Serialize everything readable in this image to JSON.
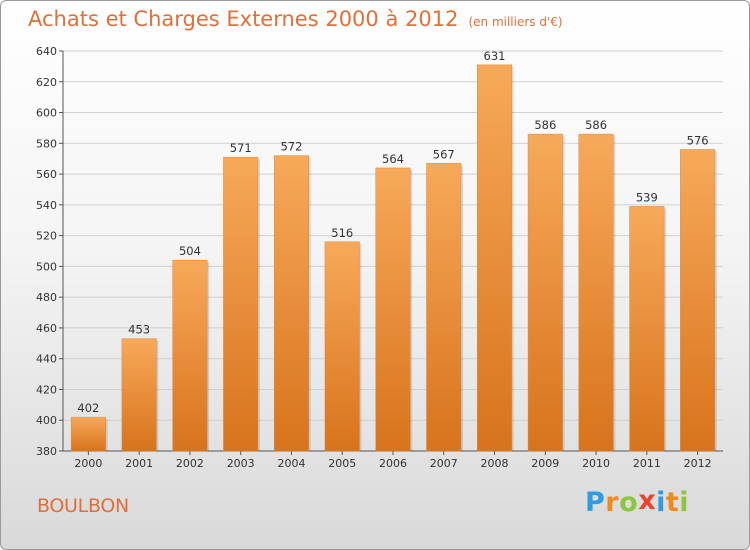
{
  "header": {
    "title": "Achats et Charges Externes 2000 à 2012",
    "unit": "(en milliers d'€)"
  },
  "footer": {
    "commune": "BOULBON",
    "logo_text": "Proxiti",
    "logo_letters": [
      {
        "ch": "P",
        "color": "#2f9be0"
      },
      {
        "ch": "r",
        "color": "#f08a1c"
      },
      {
        "ch": "o",
        "color": "#8cc63e"
      },
      {
        "ch": "x",
        "color": "#e8452e"
      },
      {
        "ch": "i",
        "color": "#2f9be0"
      },
      {
        "ch": "t",
        "color": "#f08a1c"
      },
      {
        "ch": "i",
        "color": "#8cc63e"
      }
    ]
  },
  "colors": {
    "bar_top": "#f7a95a",
    "bar_bottom": "#d8731c",
    "title": "#e0703a",
    "grid": "#d0d0d0"
  },
  "chart_data": {
    "type": "bar",
    "title": "Achats et Charges Externes 2000 à 2012",
    "subtitle": "(en milliers d'€)",
    "categories": [
      "2000",
      "2001",
      "2002",
      "2003",
      "2004",
      "2005",
      "2006",
      "2007",
      "2008",
      "2009",
      "2010",
      "2011",
      "2012"
    ],
    "values": [
      402,
      453,
      504,
      571,
      572,
      516,
      564,
      567,
      631,
      586,
      586,
      539,
      576
    ],
    "ylim": [
      380,
      640
    ],
    "yticks": [
      380,
      400,
      420,
      440,
      460,
      480,
      500,
      520,
      540,
      560,
      580,
      600,
      620,
      640
    ],
    "grid": true,
    "xlabel": "",
    "ylabel": ""
  }
}
